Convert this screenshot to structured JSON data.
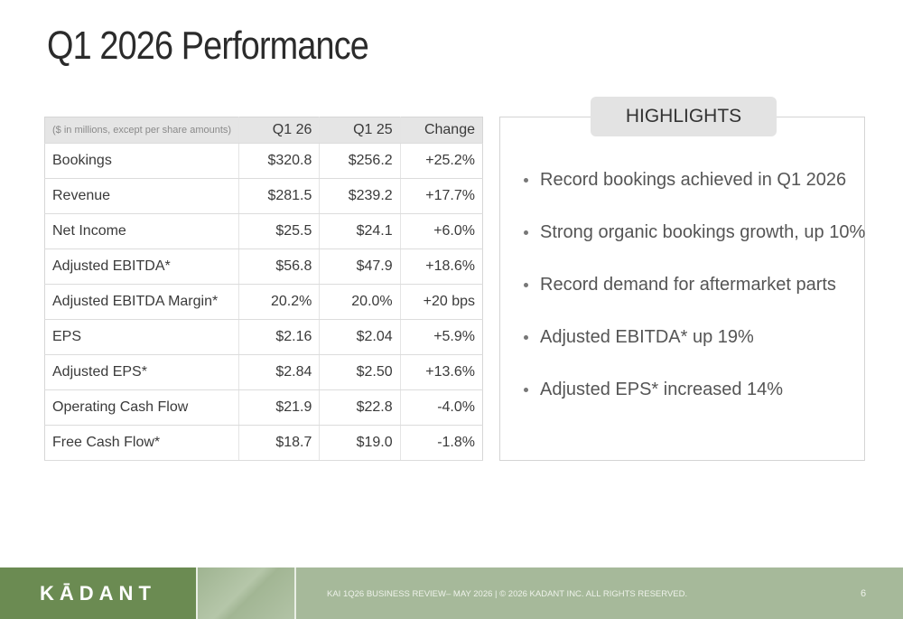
{
  "title": "Q1 2026 Performance",
  "table": {
    "note": "($ in millions, except per share amounts)",
    "columns": [
      "Q1 26",
      "Q1 25",
      "Change"
    ],
    "rows": [
      {
        "label": "Bookings",
        "q1_26": "$320.8",
        "q1_25": "$256.2",
        "change": "+25.2%"
      },
      {
        "label": "Revenue",
        "q1_26": "$281.5",
        "q1_25": "$239.2",
        "change": "+17.7%"
      },
      {
        "label": "Net Income",
        "q1_26": "$25.5",
        "q1_25": "$24.1",
        "change": "+6.0%"
      },
      {
        "label": "Adjusted EBITDA*",
        "q1_26": "$56.8",
        "q1_25": "$47.9",
        "change": "+18.6%"
      },
      {
        "label": "Adjusted EBITDA Margin*",
        "q1_26": "20.2%",
        "q1_25": "20.0%",
        "change": "+20 bps"
      },
      {
        "label": "EPS",
        "q1_26": "$2.16",
        "q1_25": "$2.04",
        "change": "+5.9%"
      },
      {
        "label": "Adjusted EPS*",
        "q1_26": "$2.84",
        "q1_25": "$2.50",
        "change": "+13.6%"
      },
      {
        "label": "Operating Cash Flow",
        "q1_26": "$21.9",
        "q1_25": "$22.8",
        "change": "-4.0%"
      },
      {
        "label": "Free Cash Flow*",
        "q1_26": "$18.7",
        "q1_25": "$19.0",
        "change": "-1.8%"
      }
    ]
  },
  "highlights": {
    "heading": "HIGHLIGHTS",
    "items": [
      "Record bookings achieved in Q1 2026",
      "Strong organic bookings growth, up 10%",
      "Record demand for aftermarket parts",
      "Adjusted EBITDA* up 19%",
      "Adjusted EPS* increased 14%"
    ]
  },
  "footer": {
    "logo": "KĀDANT",
    "text": "KAI 1Q26 BUSINESS REVIEW– MAY 2026  |  © 2026 KADANT INC. ALL RIGHTS RESERVED.",
    "page_number": "6"
  },
  "colors": {
    "footer_bg": "#a6b99a",
    "logo_bg": "#6b8b52",
    "table_header_bg": "#e5e5e5",
    "highlight_tab_bg": "#e3e3e3"
  }
}
